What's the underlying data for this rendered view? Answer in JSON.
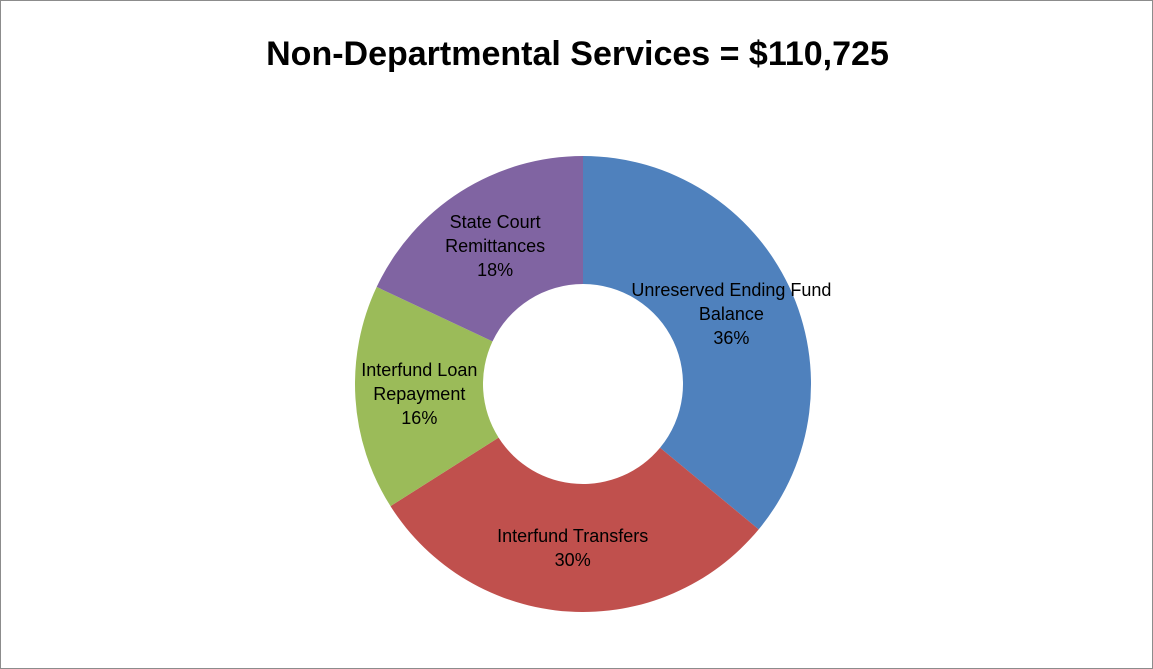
{
  "chart_data": {
    "type": "donut",
    "title": "Non-Departmental Services = $110,725",
    "categories": [
      "Unreserved Ending Fund Balance",
      "Interfund Transfers",
      "Interfund Loan Repayment",
      "State Court Remittances"
    ],
    "values": [
      36,
      30,
      16,
      18
    ],
    "value_labels": [
      "36%",
      "30%",
      "16%",
      "18%"
    ],
    "colors": [
      "#4f81bd",
      "#c0504d",
      "#9bbb59",
      "#8064a2"
    ]
  }
}
